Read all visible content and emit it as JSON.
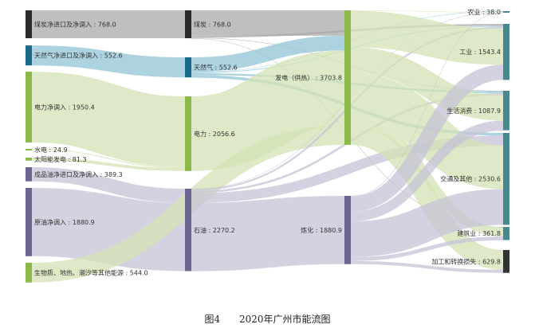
{
  "caption": {
    "figure": "图4",
    "title": "2020年广州市能流图"
  },
  "colors": {
    "coal": "#2b2b2b",
    "gas": "#1b6a8a",
    "power": "#8db84a",
    "oil": "#6b6690",
    "use": "#4a8890",
    "loss": "#333333",
    "coal_link": "#a9a9a9",
    "gas_link": "#93c4d6",
    "power_link": "#d3e3b4",
    "oil_link": "#c6c3d6"
  },
  "nodes": [
    {
      "label": "煤炭净进口及净调入 : 768.0",
      "value": 768.0,
      "color": "coal"
    },
    {
      "label": "天然气净进口及净调入 : 552.6",
      "value": 552.6,
      "color": "gas"
    },
    {
      "label": "电力净调入 : 1950.4",
      "value": 1950.4,
      "color": "power"
    },
    {
      "label": "水电 : 24.9",
      "value": 24.9,
      "color": "power"
    },
    {
      "label": "太阳能发电 : 81.3",
      "value": 81.3,
      "color": "power"
    },
    {
      "label": "成品油净进口及净调入 : 389.3",
      "value": 389.3,
      "color": "oil"
    },
    {
      "label": "原油净调入 : 1880.9",
      "value": 1880.9,
      "color": "oil"
    },
    {
      "label": "生物质、地热、潮汐等其他能源 : 544.0",
      "value": 544.0,
      "color": "power"
    },
    {
      "label": "煤炭 : 768.0",
      "value": 768.0,
      "color": "coal"
    },
    {
      "label": "天然气 : 552.6",
      "value": 552.6,
      "color": "gas"
    },
    {
      "label": "电力 : 2056.6",
      "value": 2056.6,
      "color": "power"
    },
    {
      "label": "石油 : 2270.2",
      "value": 2270.2,
      "color": "oil"
    },
    {
      "label": "发电（供热） : 3703.8",
      "value": 3703.8,
      "color": "power"
    },
    {
      "label": "炼化 : 1880.9",
      "value": 1880.9,
      "color": "oil"
    },
    {
      "label": "农业 : 38.0",
      "value": 38.0,
      "color": "use"
    },
    {
      "label": "工业 : 1543.4",
      "value": 1543.4,
      "color": "use"
    },
    {
      "label": "生活消费 : 1087.9",
      "value": 1087.9,
      "color": "use"
    },
    {
      "label": "交通及其他 : 2530.6",
      "value": 2530.6,
      "color": "use"
    },
    {
      "label": "建筑业 : 361.8",
      "value": 361.8,
      "color": "use"
    },
    {
      "label": "加工和转换损失 : 629.8",
      "value": 629.8,
      "color": "loss"
    }
  ],
  "links": [
    {
      "s": 0,
      "t": 8,
      "v": 768.0,
      "c": "coal_link"
    },
    {
      "s": 1,
      "t": 9,
      "v": 552.6,
      "c": "gas_link"
    },
    {
      "s": 2,
      "t": 10,
      "v": 1950.4,
      "c": "power_link"
    },
    {
      "s": 3,
      "t": 10,
      "v": 24.9,
      "c": "power_link"
    },
    {
      "s": 4,
      "t": 10,
      "v": 81.3,
      "c": "power_link"
    },
    {
      "s": 5,
      "t": 11,
      "v": 389.3,
      "c": "oil_link"
    },
    {
      "s": 6,
      "t": 11,
      "v": 1880.9,
      "c": "oil_link"
    },
    {
      "s": 8,
      "t": 12,
      "v": 700,
      "c": "coal_link"
    },
    {
      "s": 8,
      "t": 15,
      "v": 55,
      "c": "coal_link"
    },
    {
      "s": 8,
      "t": 16,
      "v": 8,
      "c": "coal_link"
    },
    {
      "s": 8,
      "t": 18,
      "v": 5,
      "c": "coal_link"
    },
    {
      "s": 9,
      "t": 12,
      "v": 403.2,
      "c": "gas_link"
    },
    {
      "s": 9,
      "t": 14,
      "v": 4.4,
      "c": "gas_link"
    },
    {
      "s": 9,
      "t": 15,
      "v": 20,
      "c": "gas_link"
    },
    {
      "s": 9,
      "t": 16,
      "v": 50,
      "c": "gas_link"
    },
    {
      "s": 9,
      "t": 17,
      "v": 75,
      "c": "gas_link"
    },
    {
      "s": 10,
      "t": 12,
      "v": 2056.6,
      "c": "power_link"
    },
    {
      "s": 7,
      "t": 12,
      "v": 544.0,
      "c": "power_link"
    },
    {
      "s": 11,
      "t": 14,
      "v": 9.3,
      "c": "oil_link"
    },
    {
      "s": 11,
      "t": 15,
      "v": 50,
      "c": "oil_link"
    },
    {
      "s": 11,
      "t": 16,
      "v": 60,
      "c": "oil_link"
    },
    {
      "s": 11,
      "t": 17,
      "v": 270,
      "c": "oil_link"
    },
    {
      "s": 11,
      "t": 13,
      "v": 1880.9,
      "c": "oil_link"
    },
    {
      "s": 12,
      "t": 14,
      "v": 10,
      "c": "power_link"
    },
    {
      "s": 12,
      "t": 15,
      "v": 1000,
      "c": "power_link"
    },
    {
      "s": 12,
      "t": 16,
      "v": 700,
      "c": "power_link"
    },
    {
      "s": 12,
      "t": 17,
      "v": 1200,
      "c": "power_link"
    },
    {
      "s": 12,
      "t": 18,
      "v": 250,
      "c": "power_link"
    },
    {
      "s": 12,
      "t": 19,
      "v": 543.8,
      "c": "power_link"
    },
    {
      "s": 13,
      "t": 14,
      "v": 14.3,
      "c": "oil_link"
    },
    {
      "s": 13,
      "t": 15,
      "v": 418,
      "c": "oil_link"
    },
    {
      "s": 13,
      "t": 16,
      "v": 270,
      "c": "oil_link"
    },
    {
      "s": 13,
      "t": 17,
      "v": 985.6,
      "c": "oil_link"
    },
    {
      "s": 13,
      "t": 18,
      "v": 107,
      "c": "oil_link"
    },
    {
      "s": 13,
      "t": 19,
      "v": 86,
      "c": "oil_link"
    }
  ]
}
